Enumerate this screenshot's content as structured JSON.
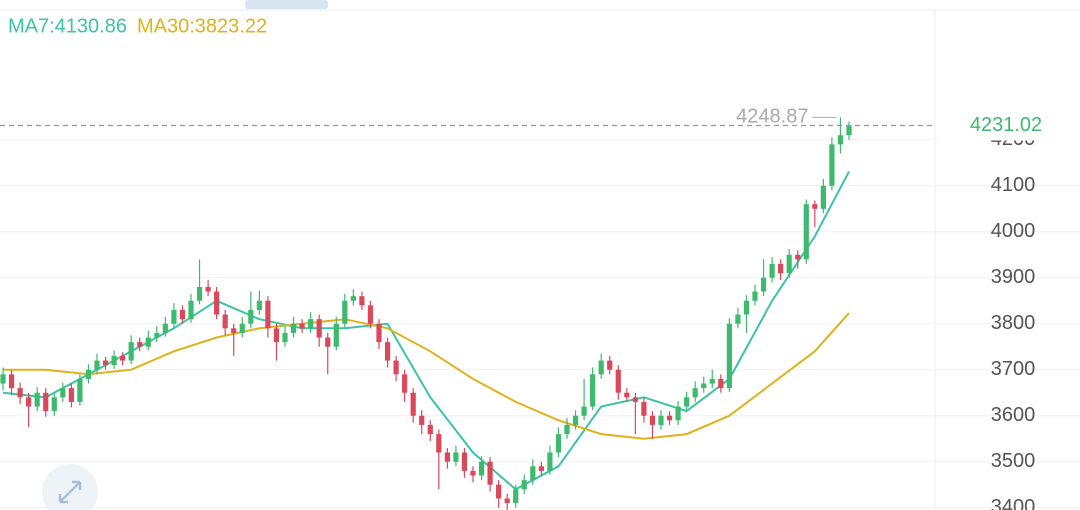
{
  "chart_data": {
    "type": "candlestick",
    "up_color": "#3dba6e",
    "down_color": "#d9485b",
    "ylim": [
      3395,
      4504
    ],
    "yticks": [
      3400,
      3500,
      3600,
      3700,
      3800,
      3900,
      4000,
      4100,
      4200
    ],
    "grid": true,
    "open": [
      3670,
      3690,
      3660,
      3640,
      3620,
      3650,
      3610,
      3640,
      3660,
      3630,
      3680,
      3700,
      3720,
      3710,
      3730,
      3720,
      3760,
      3750,
      3770,
      3780,
      3800,
      3830,
      3810,
      3850,
      3880,
      3870,
      3820,
      3790,
      3780,
      3800,
      3830,
      3850,
      3790,
      3760,
      3780,
      3800,
      3790,
      3810,
      3770,
      3750,
      3800,
      3850,
      3860,
      3840,
      3800,
      3760,
      3720,
      3690,
      3650,
      3600,
      3580,
      3560,
      3520,
      3500,
      3520,
      3480,
      3470,
      3500,
      3450,
      3420,
      3410,
      3440,
      3460,
      3490,
      3480,
      3520,
      3560,
      3580,
      3600,
      3620,
      3690,
      3720,
      3700,
      3650,
      3640,
      3630,
      3600,
      3580,
      3600,
      3590,
      3620,
      3640,
      3660,
      3670,
      3680,
      3660,
      3800,
      3820,
      3850,
      3870,
      3900,
      3930,
      3910,
      3950,
      3940,
      4060,
      4050,
      4100,
      4190,
      4210
    ],
    "high": [
      3705,
      3700,
      3672,
      3650,
      3662,
      3660,
      3650,
      3672,
      3670,
      3690,
      3712,
      3735,
      3728,
      3742,
      3738,
      3775,
      3770,
      3785,
      3795,
      3815,
      3845,
      3840,
      3865,
      3940,
      3895,
      3880,
      3830,
      3800,
      3815,
      3870,
      3872,
      3860,
      3800,
      3795,
      3815,
      3810,
      3825,
      3820,
      3780,
      3815,
      3865,
      3875,
      3870,
      3850,
      3810,
      3770,
      3730,
      3700,
      3660,
      3612,
      3590,
      3570,
      3530,
      3535,
      3530,
      3490,
      3512,
      3510,
      3460,
      3430,
      3450,
      3472,
      3505,
      3500,
      3535,
      3575,
      3595,
      3612,
      3680,
      3705,
      3735,
      3730,
      3710,
      3660,
      3650,
      3640,
      3610,
      3612,
      3610,
      3632,
      3652,
      3675,
      3685,
      3700,
      3690,
      3812,
      3835,
      3862,
      3885,
      3940,
      3945,
      3940,
      3962,
      3960,
      4070,
      4068,
      4115,
      4205,
      4248.87,
      4240
    ],
    "low": [
      3655,
      3645,
      3625,
      3575,
      3610,
      3598,
      3600,
      3630,
      3618,
      3622,
      3670,
      3690,
      3700,
      3702,
      3710,
      3712,
      3740,
      3742,
      3760,
      3772,
      3790,
      3800,
      3802,
      3842,
      3860,
      3810,
      3775,
      3730,
      3770,
      3790,
      3820,
      3770,
      3720,
      3750,
      3770,
      3780,
      3780,
      3750,
      3690,
      3742,
      3792,
      3840,
      3830,
      3790,
      3745,
      3705,
      3675,
      3630,
      3585,
      3560,
      3545,
      3440,
      3485,
      3490,
      3465,
      3455,
      3460,
      3435,
      3400,
      3390,
      3400,
      3430,
      3450,
      3470,
      3472,
      3510,
      3550,
      3570,
      3590,
      3612,
      3680,
      3690,
      3635,
      3630,
      3560,
      3585,
      3550,
      3570,
      3580,
      3580,
      3612,
      3630,
      3650,
      3660,
      3650,
      3652,
      3790,
      3780,
      3840,
      3860,
      3890,
      3895,
      3900,
      3920,
      3930,
      4010,
      4040,
      4090,
      4170,
      4200
    ],
    "close": [
      3690,
      3660,
      3640,
      3620,
      3650,
      3610,
      3640,
      3660,
      3630,
      3680,
      3700,
      3720,
      3710,
      3730,
      3720,
      3760,
      3750,
      3770,
      3780,
      3800,
      3830,
      3810,
      3850,
      3880,
      3870,
      3820,
      3790,
      3780,
      3800,
      3830,
      3850,
      3790,
      3760,
      3780,
      3800,
      3790,
      3810,
      3770,
      3750,
      3800,
      3850,
      3860,
      3840,
      3800,
      3760,
      3720,
      3690,
      3650,
      3600,
      3580,
      3560,
      3520,
      3500,
      3520,
      3480,
      3470,
      3500,
      3450,
      3420,
      3410,
      3440,
      3460,
      3490,
      3480,
      3520,
      3560,
      3580,
      3600,
      3620,
      3690,
      3720,
      3700,
      3650,
      3640,
      3630,
      3600,
      3580,
      3600,
      3590,
      3620,
      3640,
      3660,
      3670,
      3680,
      3660,
      3800,
      3820,
      3850,
      3870,
      3900,
      3930,
      3910,
      3950,
      3940,
      4060,
      4050,
      4100,
      4190,
      4210,
      4231.02
    ],
    "series": [
      {
        "name": "MA7:4130.86",
        "color": "#3cc4a8",
        "x": [
          0,
          5,
          10,
          15,
          20,
          25,
          30,
          35,
          40,
          45,
          50,
          55,
          60,
          65,
          70,
          75,
          80,
          85,
          90,
          95,
          99
        ],
        "values": [
          3650,
          3640,
          3690,
          3740,
          3790,
          3850,
          3810,
          3790,
          3790,
          3800,
          3640,
          3520,
          3440,
          3490,
          3620,
          3640,
          3610,
          3680,
          3850,
          3990,
          4130.86
        ]
      },
      {
        "name": "MA30:3823.22",
        "color": "#e0b21a",
        "x": [
          0,
          5,
          10,
          15,
          20,
          25,
          30,
          35,
          40,
          45,
          50,
          55,
          60,
          65,
          70,
          75,
          80,
          85,
          90,
          95,
          99
        ],
        "values": [
          3700,
          3700,
          3690,
          3700,
          3740,
          3770,
          3790,
          3800,
          3810,
          3790,
          3740,
          3680,
          3630,
          3590,
          3560,
          3550,
          3560,
          3600,
          3670,
          3740,
          3823.22
        ]
      }
    ]
  }
}
